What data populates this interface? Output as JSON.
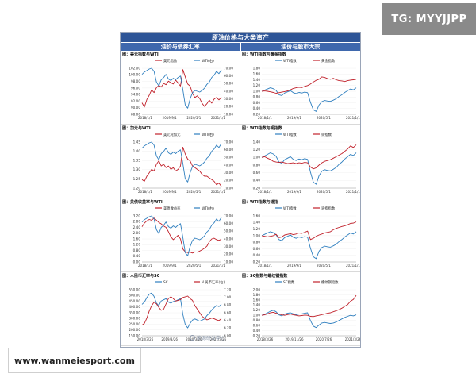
{
  "badges": {
    "tg": "TG: MYYJJPP",
    "site": "www.wanmeiesport.com"
  },
  "doc": {
    "title": "原油价格与大类资产",
    "left_header": "油价与债券汇率",
    "right_header": "油价与股市大宗",
    "credit": "能源研发中心"
  },
  "colors": {
    "red_series": "#c0202a",
    "blue_series": "#2f7fbf"
  },
  "chart_data": [
    {
      "id": "usd",
      "type": "line",
      "title": "图：美元指数与WTI",
      "x_ticks": [
        "2018/1/1",
        "2019/9/1",
        "2020/5/1",
        "2021/1/1"
      ],
      "left_axis": [
        "102.00",
        "100.00",
        "98.00",
        "96.00",
        "94.00",
        "92.00",
        "90.00",
        "88.00"
      ],
      "right_axis": [
        "70.00",
        "60.00",
        "50.00",
        "40.00",
        "30.00",
        "20.00",
        "10.00"
      ],
      "series": [
        {
          "name": "美元指数",
          "axis": "left",
          "ylim": [
            88,
            102
          ],
          "color": "#c0202a",
          "values": [
            91.5,
            90.2,
            92.5,
            93.8,
            95.4,
            94.6,
            96.1,
            96.8,
            96.3,
            97.4,
            97.0,
            98.1,
            97.6,
            97.2,
            98.4,
            97.5,
            96.6,
            101.6,
            99.4,
            97.2,
            96.6,
            94.4,
            93.1,
            93.6,
            92.8,
            91.3,
            90.4,
            91.2,
            92.3,
            91.4,
            92.6,
            93.1,
            92.4,
            93.2
          ]
        },
        {
          "name": "WTI(右)",
          "axis": "right",
          "ylim": [
            10,
            70
          ],
          "color": "#2f7fbf",
          "values": [
            62,
            65,
            67,
            69,
            70,
            66,
            52,
            47,
            55,
            58,
            62,
            56,
            54,
            57,
            55,
            58,
            60,
            42,
            22,
            18,
            30,
            38,
            41,
            40,
            39,
            41,
            44,
            49,
            52,
            58,
            61,
            66,
            63,
            68
          ]
        }
      ]
    },
    {
      "id": "gold",
      "type": "line",
      "title": "图：WTI指数与黄金指数",
      "x_ticks": [
        "2018/1/1",
        "2019/9/1",
        "2020/5/1",
        "2021/1/1"
      ],
      "left_axis": [
        "1.80",
        "1.60",
        "1.40",
        "1.20",
        "1.00",
        "0.80",
        "0.60",
        "0.40",
        "0.20"
      ],
      "series": [
        {
          "name": "WTI指数",
          "ylim": [
            0.2,
            1.8
          ],
          "color": "#2f7fbf",
          "values": [
            1.0,
            1.04,
            1.08,
            1.12,
            1.09,
            1.03,
            0.88,
            0.85,
            0.94,
            0.98,
            1.02,
            0.95,
            0.92,
            0.96,
            0.94,
            0.97,
            0.95,
            0.62,
            0.36,
            0.3,
            0.52,
            0.64,
            0.68,
            0.66,
            0.65,
            0.69,
            0.74,
            0.82,
            0.88,
            0.96,
            1.02,
            1.08,
            1.05,
            1.12
          ]
        },
        {
          "name": "黄金指数",
          "ylim": [
            0.2,
            1.8
          ],
          "color": "#c0202a",
          "values": [
            1.0,
            1.01,
            1.0,
            0.98,
            0.96,
            0.93,
            0.95,
            0.97,
            0.99,
            1.01,
            1.05,
            1.1,
            1.12,
            1.14,
            1.13,
            1.17,
            1.2,
            1.25,
            1.32,
            1.38,
            1.42,
            1.5,
            1.48,
            1.44,
            1.42,
            1.45,
            1.4,
            1.37,
            1.36,
            1.34,
            1.37,
            1.39,
            1.4,
            1.42
          ]
        }
      ]
    },
    {
      "id": "cad",
      "type": "line",
      "title": "图：加元与WTI",
      "x_ticks": [
        "2018/1/1",
        "2019/9/1",
        "2020/5/1",
        "2021/1/1"
      ],
      "left_axis": [
        "1.45",
        "1.40",
        "1.35",
        "1.30",
        "1.25",
        "1.20"
      ],
      "right_axis": [
        "70.00",
        "60.00",
        "50.00",
        "40.00",
        "30.00",
        "20.00",
        "10.00"
      ],
      "series": [
        {
          "name": "美元兑加元",
          "axis": "left",
          "ylim": [
            1.2,
            1.47
          ],
          "color": "#c0202a",
          "values": [
            1.25,
            1.24,
            1.27,
            1.29,
            1.31,
            1.3,
            1.34,
            1.36,
            1.33,
            1.34,
            1.32,
            1.33,
            1.31,
            1.32,
            1.3,
            1.31,
            1.33,
            1.44,
            1.4,
            1.37,
            1.36,
            1.33,
            1.32,
            1.31,
            1.3,
            1.28,
            1.27,
            1.27,
            1.26,
            1.25,
            1.24,
            1.22,
            1.23,
            1.21
          ]
        },
        {
          "name": "WTI(右)",
          "axis": "right",
          "ylim": [
            10,
            70
          ],
          "color": "#2f7fbf",
          "values": [
            62,
            65,
            67,
            69,
            70,
            66,
            52,
            47,
            55,
            58,
            62,
            56,
            54,
            57,
            55,
            58,
            60,
            42,
            22,
            18,
            30,
            38,
            41,
            40,
            39,
            41,
            44,
            49,
            52,
            58,
            61,
            66,
            63,
            68
          ]
        }
      ]
    },
    {
      "id": "copper",
      "type": "line",
      "title": "图：WTI指数与铜指数",
      "x_ticks": [
        "2018/1/1",
        "2019/9/1",
        "2020/5/1",
        "2021/1/1"
      ],
      "left_axis": [
        "1.40",
        "1.20",
        "1.00",
        "0.80",
        "0.60",
        "0.40",
        "0.20"
      ],
      "series": [
        {
          "name": "WTI指数",
          "ylim": [
            0.2,
            1.4
          ],
          "color": "#2f7fbf",
          "values": [
            1.0,
            1.04,
            1.08,
            1.12,
            1.09,
            1.03,
            0.88,
            0.85,
            0.94,
            0.98,
            1.02,
            0.95,
            0.92,
            0.96,
            0.94,
            0.97,
            0.95,
            0.62,
            0.36,
            0.3,
            0.52,
            0.64,
            0.68,
            0.66,
            0.65,
            0.69,
            0.74,
            0.82,
            0.88,
            0.96,
            1.02,
            1.08,
            1.05,
            1.12
          ]
        },
        {
          "name": "铜指数",
          "ylim": [
            0.2,
            1.4
          ],
          "color": "#c0202a",
          "values": [
            1.0,
            1.02,
            0.98,
            0.95,
            0.9,
            0.88,
            0.87,
            0.88,
            0.86,
            0.84,
            0.85,
            0.86,
            0.84,
            0.86,
            0.85,
            0.87,
            0.86,
            0.75,
            0.7,
            0.73,
            0.8,
            0.86,
            0.9,
            0.92,
            0.94,
            0.98,
            1.02,
            1.06,
            1.1,
            1.16,
            1.22,
            1.3,
            1.26,
            1.33
          ]
        }
      ]
    },
    {
      "id": "treasury",
      "type": "line",
      "title": "图：美债收益率与WTI",
      "x_ticks": [
        "2018/1/1",
        "2019/9/1",
        "2020/5/1",
        "2021/1/1"
      ],
      "left_axis": [
        "3.20",
        "2.80",
        "2.40",
        "2.00",
        "1.60",
        "1.20",
        "0.80",
        "0.40",
        "0.00"
      ],
      "right_axis": [
        "70.00",
        "60.00",
        "50.00",
        "40.00",
        "30.00",
        "20.00",
        "10.00"
      ],
      "series": [
        {
          "name": "美债收益率",
          "axis": "left",
          "ylim": [
            0,
            3.2
          ],
          "color": "#c0202a",
          "values": [
            2.45,
            2.7,
            2.85,
            2.95,
            2.9,
            3.05,
            2.9,
            2.75,
            2.65,
            2.5,
            2.4,
            2.1,
            1.75,
            1.55,
            1.7,
            1.85,
            1.6,
            0.9,
            0.7,
            0.65,
            0.68,
            0.62,
            0.7,
            0.68,
            0.75,
            0.85,
            0.95,
            1.1,
            1.4,
            1.6,
            1.65,
            1.55,
            1.5,
            1.58
          ]
        },
        {
          "name": "WTI(右)",
          "axis": "right",
          "ylim": [
            10,
            70
          ],
          "color": "#2f7fbf",
          "values": [
            62,
            65,
            67,
            69,
            70,
            66,
            52,
            47,
            55,
            58,
            62,
            56,
            54,
            57,
            55,
            58,
            60,
            42,
            22,
            18,
            30,
            38,
            41,
            40,
            39,
            41,
            44,
            49,
            52,
            58,
            61,
            66,
            63,
            68
          ]
        }
      ]
    },
    {
      "id": "equity",
      "type": "line",
      "title": "图：WTI指数与道指",
      "x_ticks": [
        "2018/1/1",
        "2019/9/1",
        "2020/5/1",
        "2021/1/1"
      ],
      "left_axis": [
        "1.60",
        "1.40",
        "1.20",
        "1.00",
        "0.80",
        "0.60",
        "0.40",
        "0.20"
      ],
      "series": [
        {
          "name": "WTI指数",
          "ylim": [
            0.2,
            1.6
          ],
          "color": "#2f7fbf",
          "values": [
            1.0,
            1.04,
            1.08,
            1.12,
            1.09,
            1.03,
            0.88,
            0.85,
            0.94,
            0.98,
            1.02,
            0.95,
            0.92,
            0.96,
            0.94,
            0.97,
            0.95,
            0.62,
            0.36,
            0.3,
            0.52,
            0.64,
            0.68,
            0.66,
            0.65,
            0.69,
            0.74,
            0.82,
            0.88,
            0.96,
            1.02,
            1.08,
            1.05,
            1.12
          ]
        },
        {
          "name": "道指指数",
          "ylim": [
            0.2,
            1.6
          ],
          "color": "#c0202a",
          "values": [
            1.0,
            0.98,
            0.96,
            0.98,
            1.0,
            1.04,
            0.94,
            0.96,
            1.02,
            1.04,
            1.06,
            1.03,
            1.05,
            1.08,
            1.07,
            1.1,
            1.14,
            0.88,
            0.92,
            0.98,
            1.02,
            1.05,
            1.08,
            1.1,
            1.12,
            1.18,
            1.22,
            1.25,
            1.28,
            1.3,
            1.33,
            1.37,
            1.38,
            1.42
          ]
        }
      ]
    },
    {
      "id": "cny",
      "type": "line",
      "title": "图：人民币汇率与SC",
      "x_ticks": [
        "2018/3/26",
        "2019/3/26",
        "2020/3/26",
        "2021/3/26"
      ],
      "left_axis": [
        "550.00",
        "500.00",
        "450.00",
        "400.00",
        "350.00",
        "300.00",
        "250.00",
        "200.00",
        "150.00"
      ],
      "right_axis": [
        "7.20",
        "7.00",
        "6.80",
        "6.60",
        "6.40",
        "6.20",
        "6.00"
      ],
      "series": [
        {
          "name": "SC",
          "axis": "left",
          "ylim": [
            150,
            560
          ],
          "color": "#2f7fbf",
          "values": [
            430,
            450,
            490,
            520,
            530,
            500,
            440,
            420,
            460,
            470,
            480,
            450,
            440,
            455,
            460,
            470,
            480,
            340,
            250,
            220,
            260,
            290,
            300,
            290,
            280,
            290,
            300,
            330,
            350,
            380,
            400,
            420,
            410,
            430
          ]
        },
        {
          "name": "人民币汇率(右)",
          "axis": "right",
          "ylim": [
            6.0,
            7.3
          ],
          "color": "#c0202a",
          "values": [
            6.3,
            6.35,
            6.5,
            6.7,
            6.85,
            6.95,
            6.9,
            6.8,
            6.72,
            6.75,
            6.9,
            7.05,
            7.1,
            7.05,
            6.98,
            7.0,
            7.02,
            7.08,
            7.1,
            7.12,
            7.05,
            7.0,
            6.85,
            6.75,
            6.65,
            6.55,
            6.5,
            6.45,
            6.47,
            6.5,
            6.48,
            6.45,
            6.43,
            6.48
          ]
        }
      ]
    },
    {
      "id": "rebar",
      "type": "line",
      "title": "图：SC指数与螺纹钢指数",
      "x_ticks": [
        "2018/3/26",
        "2019/11/26",
        "2020/7/26",
        "2021/3/26"
      ],
      "left_axis": [
        "2.00",
        "1.80",
        "1.60",
        "1.40",
        "1.20",
        "1.00",
        "0.80",
        "0.60",
        "0.40",
        "0.20"
      ],
      "series": [
        {
          "name": "SC指数",
          "ylim": [
            0.2,
            2.0
          ],
          "color": "#2f7fbf",
          "values": [
            1.0,
            1.04,
            1.1,
            1.16,
            1.2,
            1.14,
            1.02,
            0.98,
            1.05,
            1.08,
            1.1,
            1.06,
            1.02,
            1.05,
            1.06,
            1.08,
            1.1,
            0.8,
            0.58,
            0.52,
            0.62,
            0.7,
            0.72,
            0.7,
            0.68,
            0.7,
            0.74,
            0.8,
            0.86,
            0.92,
            0.96,
            1.0,
            0.98,
            1.02
          ]
        },
        {
          "name": "螺纹钢指数",
          "ylim": [
            0.2,
            2.0
          ],
          "color": "#c0202a",
          "values": [
            1.0,
            1.02,
            1.06,
            1.1,
            1.12,
            1.08,
            1.05,
            1.02,
            1.0,
            1.03,
            1.05,
            1.02,
            1.0,
            0.98,
            0.99,
            1.01,
            1.0,
            0.96,
            0.95,
            0.98,
            1.0,
            1.03,
            1.05,
            1.08,
            1.1,
            1.14,
            1.18,
            1.22,
            1.28,
            1.35,
            1.42,
            1.55,
            1.62,
            1.78
          ]
        }
      ]
    }
  ]
}
